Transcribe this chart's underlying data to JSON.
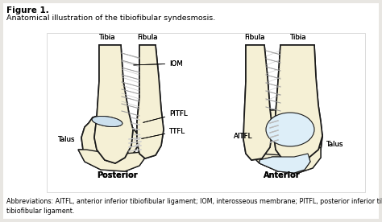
{
  "figure_title": "Figure 1.",
  "subtitle": "Anatomical illustration of the tibiofibular syndesmosis.",
  "abbreviations": "Abbreviations: AITFL, anterior inferior tibiofibular ligament; IOM, interosseous membrane; PITFL, posterior inferior tibiofibular ligament; TTFL, transverse\ntibiofibular ligament.",
  "background_color": "#e8e6e2",
  "panel_color": "#ffffff",
  "bone_fill": "#f5f0d5",
  "bone_edge": "#1a1a1a",
  "cart_fill": "#cce0ee",
  "ligament_color": "#bbbbbb",
  "iom_color": "#aaaaaa",
  "font_sizes": {
    "title": 7.5,
    "subtitle": 6.8,
    "label": 6.2,
    "view_label": 7.0,
    "abbrev": 5.8
  },
  "labels": {
    "post_tibia": "Tibia",
    "post_fibula": "Fibula",
    "post_talus": "Talus",
    "post_iom": "IOM",
    "post_pitfl": "PITFL",
    "post_ttfl": "TTFL",
    "post_view": "Posterior",
    "ant_fibula": "Fibula",
    "ant_tibia": "Tibia",
    "ant_aitfl": "AITFL",
    "ant_talus": "Talus",
    "ant_view": "Anterior"
  }
}
